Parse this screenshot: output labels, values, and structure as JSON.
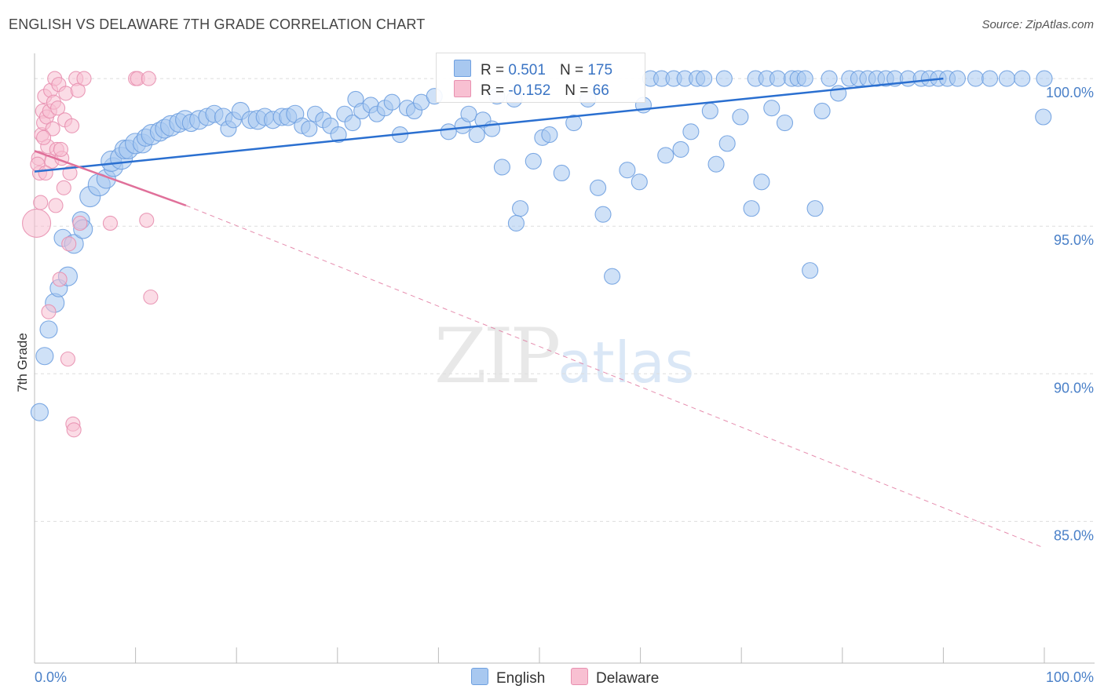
{
  "title": "ENGLISH VS DELAWARE 7TH GRADE CORRELATION CHART",
  "source": "Source: ZipAtlas.com",
  "watermark": {
    "zip": "ZIP",
    "atlas": "atlas"
  },
  "legend": {
    "rows": [
      {
        "series": "English",
        "r_label": "R =",
        "r_value": "0.501",
        "n_label": "N =",
        "n_value": "175",
        "color": "#a8c8f0",
        "border": "#6fa0e0"
      },
      {
        "series": "Delaware",
        "r_label": "R =",
        "r_value": "-0.152",
        "n_label": "N =",
        "n_value": "66",
        "color": "#f8c0d2",
        "border": "#e890b0"
      }
    ]
  },
  "bottom_legend": [
    {
      "label": "English",
      "color": "#a8c8f0",
      "border": "#6fa0e0"
    },
    {
      "label": "Delaware",
      "color": "#f8c0d2",
      "border": "#e890b0"
    }
  ],
  "chart_data": {
    "type": "scatter",
    "title": "ENGLISH VS DELAWARE 7TH GRADE CORRELATION CHART",
    "xlabel": "",
    "ylabel": "7th Grade",
    "xlim": [
      0,
      100
    ],
    "ylim": [
      80.2,
      100.8
    ],
    "x_tick_labels": [
      "0.0%",
      "100.0%"
    ],
    "y_ticks": [
      {
        "value": 100,
        "label": "100.0%"
      },
      {
        "value": 95,
        "label": "95.0%"
      },
      {
        "value": 90,
        "label": "90.0%"
      },
      {
        "value": 85,
        "label": "85.0%"
      }
    ],
    "grid": true,
    "series": [
      {
        "name": "English",
        "color": "#a8c8f0",
        "stroke": "#6fa0e0",
        "line_color": "#2a6fd0",
        "trend": {
          "x0": 0,
          "y0": 96.85,
          "x1": 90,
          "y1": 100.0
        },
        "points": [
          [
            0.5,
            88.7,
            1.1
          ],
          [
            1.0,
            90.6,
            1.1
          ],
          [
            1.4,
            91.5,
            1.1
          ],
          [
            2.0,
            92.4,
            1.2
          ],
          [
            2.4,
            92.9,
            1.1
          ],
          [
            3.3,
            93.3,
            1.2
          ],
          [
            2.8,
            94.6,
            1.1
          ],
          [
            3.9,
            94.4,
            1.2
          ],
          [
            4.6,
            95.2,
            1.1
          ],
          [
            4.8,
            94.9,
            1.2
          ],
          [
            5.5,
            96.0,
            1.3
          ],
          [
            6.4,
            96.4,
            1.4
          ],
          [
            7.1,
            96.6,
            1.2
          ],
          [
            7.8,
            97.0,
            1.2
          ],
          [
            7.6,
            97.2,
            1.3
          ],
          [
            8.6,
            97.3,
            1.4
          ],
          [
            8.9,
            97.6,
            1.2
          ],
          [
            9.3,
            97.6,
            1.2
          ],
          [
            10.0,
            97.8,
            1.3
          ],
          [
            10.7,
            97.8,
            1.2
          ],
          [
            11.0,
            98.0,
            1.1
          ],
          [
            11.6,
            98.1,
            1.3
          ],
          [
            12.4,
            98.2,
            1.2
          ],
          [
            12.9,
            98.3,
            1.2
          ],
          [
            13.5,
            98.4,
            1.3
          ],
          [
            14.3,
            98.5,
            1.2
          ],
          [
            14.9,
            98.6,
            1.2
          ],
          [
            15.5,
            98.5,
            1.1
          ],
          [
            16.3,
            98.6,
            1.2
          ],
          [
            17.1,
            98.7,
            1.1
          ],
          [
            17.8,
            98.8,
            1.1
          ],
          [
            18.7,
            98.7,
            1.1
          ],
          [
            19.2,
            98.3,
            1.0
          ],
          [
            19.7,
            98.6,
            1.0
          ],
          [
            20.4,
            98.9,
            1.1
          ],
          [
            21.4,
            98.6,
            1.1
          ],
          [
            22.1,
            98.6,
            1.2
          ],
          [
            22.8,
            98.7,
            1.1
          ],
          [
            23.6,
            98.6,
            1.1
          ],
          [
            24.5,
            98.7,
            1.1
          ],
          [
            25.1,
            98.7,
            1.1
          ],
          [
            25.8,
            98.8,
            1.1
          ],
          [
            26.5,
            98.4,
            1.0
          ],
          [
            27.2,
            98.3,
            1.0
          ],
          [
            27.8,
            98.8,
            1.0
          ],
          [
            28.6,
            98.6,
            1.0
          ],
          [
            29.3,
            98.4,
            1.0
          ],
          [
            30.1,
            98.1,
            1.0
          ],
          [
            30.7,
            98.8,
            1.0
          ],
          [
            31.5,
            98.5,
            1.0
          ],
          [
            31.8,
            99.3,
            1.0
          ],
          [
            32.4,
            98.9,
            1.0
          ],
          [
            33.3,
            99.1,
            1.0
          ],
          [
            33.9,
            98.8,
            1.0
          ],
          [
            34.7,
            99.0,
            1.0
          ],
          [
            35.4,
            99.2,
            1.0
          ],
          [
            36.2,
            98.1,
            1.0
          ],
          [
            36.9,
            99.0,
            1.0
          ],
          [
            37.6,
            98.9,
            1.0
          ],
          [
            38.3,
            99.2,
            1.0
          ],
          [
            39.6,
            99.4,
            1.0
          ],
          [
            41.0,
            98.2,
            1.0
          ],
          [
            42.4,
            98.4,
            1.0
          ],
          [
            43.0,
            98.8,
            1.0
          ],
          [
            43.8,
            98.1,
            1.0
          ],
          [
            44.4,
            98.6,
            1.0
          ],
          [
            45.3,
            98.3,
            1.0
          ],
          [
            45.8,
            99.4,
            1.0
          ],
          [
            46.3,
            97.0,
            1.0
          ],
          [
            47.5,
            99.3,
            1.0
          ],
          [
            48.1,
            95.6,
            1.0
          ],
          [
            47.7,
            95.1,
            1.0
          ],
          [
            49.4,
            97.2,
            1.0
          ],
          [
            50.3,
            98.0,
            1.0
          ],
          [
            51.0,
            98.1,
            1.0
          ],
          [
            52.2,
            96.8,
            1.0
          ],
          [
            53.4,
            98.5,
            1.0
          ],
          [
            54.8,
            99.3,
            1.0
          ],
          [
            55.8,
            96.3,
            1.0
          ],
          [
            56.3,
            95.4,
            1.0
          ],
          [
            57.2,
            93.3,
            1.0
          ],
          [
            58.7,
            96.9,
            1.0
          ],
          [
            59.9,
            96.5,
            1.0
          ],
          [
            60.3,
            99.1,
            1.0
          ],
          [
            61.0,
            100.0,
            1.0
          ],
          [
            62.1,
            100.0,
            1.0
          ],
          [
            62.5,
            97.4,
            1.0
          ],
          [
            63.3,
            100.0,
            1.0
          ],
          [
            64.0,
            97.6,
            1.0
          ],
          [
            64.4,
            100.0,
            1.0
          ],
          [
            65.0,
            98.2,
            1.0
          ],
          [
            65.6,
            100.0,
            1.0
          ],
          [
            66.3,
            100.0,
            1.0
          ],
          [
            66.9,
            98.9,
            1.0
          ],
          [
            67.5,
            97.1,
            1.0
          ],
          [
            68.3,
            100.0,
            1.0
          ],
          [
            68.6,
            97.8,
            1.0
          ],
          [
            69.9,
            98.7,
            1.0
          ],
          [
            71.0,
            95.6,
            1.0
          ],
          [
            71.4,
            100.0,
            1.0
          ],
          [
            72.0,
            96.5,
            1.0
          ],
          [
            72.5,
            100.0,
            1.0
          ],
          [
            73.0,
            99.0,
            1.0
          ],
          [
            73.6,
            100.0,
            1.0
          ],
          [
            74.3,
            98.5,
            1.0
          ],
          [
            75.0,
            100.0,
            1.0
          ],
          [
            75.6,
            100.0,
            1.0
          ],
          [
            76.3,
            100.0,
            1.0
          ],
          [
            76.8,
            93.5,
            1.0
          ],
          [
            77.3,
            95.6,
            1.0
          ],
          [
            78.0,
            98.9,
            1.0
          ],
          [
            78.7,
            100.0,
            1.0
          ],
          [
            79.6,
            99.5,
            1.0
          ],
          [
            80.7,
            100.0,
            1.0
          ],
          [
            81.6,
            100.0,
            1.0
          ],
          [
            82.5,
            100.0,
            1.0
          ],
          [
            83.4,
            100.0,
            1.0
          ],
          [
            84.3,
            100.0,
            1.0
          ],
          [
            85.2,
            100.0,
            1.0
          ],
          [
            86.5,
            100.0,
            1.0
          ],
          [
            87.8,
            100.0,
            1.0
          ],
          [
            88.6,
            100.0,
            1.0
          ],
          [
            89.5,
            100.0,
            1.0
          ],
          [
            90.4,
            100.0,
            1.0
          ],
          [
            91.4,
            100.0,
            1.0
          ],
          [
            93.2,
            100.0,
            1.0
          ],
          [
            94.6,
            100.0,
            1.0
          ],
          [
            96.3,
            100.0,
            1.0
          ],
          [
            97.8,
            100.0,
            1.0
          ],
          [
            100.0,
            100.0,
            1.0
          ],
          [
            99.9,
            98.7,
            1.0
          ]
        ]
      },
      {
        "name": "Delaware",
        "color": "#f8c0d2",
        "stroke": "#e890b0",
        "line_color": "#e0709a",
        "trend": {
          "x0": 0,
          "y0": 97.55,
          "x1": 15,
          "y1": 95.7
        },
        "trend_dashed": {
          "x0": 15,
          "y0": 95.7,
          "x1": 100,
          "y1": 84.1
        },
        "points": [
          [
            0.2,
            95.1,
            2.0
          ],
          [
            0.4,
            97.3,
            1.0
          ],
          [
            0.5,
            96.8,
            1.0
          ],
          [
            0.7,
            98.1,
            1.0
          ],
          [
            0.8,
            98.9,
            1.0
          ],
          [
            0.9,
            98.5,
            1.0
          ],
          [
            1.0,
            99.4,
            1.0
          ],
          [
            1.2,
            98.7,
            1.0
          ],
          [
            1.3,
            97.7,
            1.0
          ],
          [
            1.5,
            98.9,
            1.0
          ],
          [
            1.6,
            99.6,
            1.0
          ],
          [
            1.7,
            97.2,
            1.0
          ],
          [
            1.8,
            98.3,
            1.0
          ],
          [
            1.9,
            99.2,
            1.0
          ],
          [
            2.0,
            100.0,
            1.0
          ],
          [
            2.1,
            95.7,
            1.0
          ],
          [
            2.2,
            97.6,
            1.0
          ],
          [
            2.3,
            99.0,
            1.0
          ],
          [
            2.4,
            99.8,
            1.0
          ],
          [
            2.5,
            93.2,
            1.0
          ],
          [
            2.7,
            97.3,
            1.0
          ],
          [
            2.9,
            96.3,
            1.0
          ],
          [
            3.0,
            98.6,
            1.0
          ],
          [
            3.1,
            99.5,
            1.0
          ],
          [
            3.3,
            90.5,
            1.0
          ],
          [
            3.4,
            94.4,
            1.0
          ],
          [
            3.5,
            96.8,
            1.0
          ],
          [
            3.7,
            98.4,
            1.0
          ],
          [
            3.8,
            88.3,
            1.0
          ],
          [
            3.9,
            88.1,
            1.0
          ],
          [
            4.1,
            100.0,
            1.0
          ],
          [
            4.3,
            99.6,
            1.0
          ],
          [
            4.5,
            95.1,
            1.0
          ],
          [
            4.9,
            100.0,
            1.0
          ],
          [
            7.5,
            95.1,
            1.0
          ],
          [
            10.0,
            100.0,
            1.0
          ],
          [
            10.2,
            100.0,
            1.0
          ],
          [
            11.1,
            95.2,
            1.0
          ],
          [
            11.3,
            100.0,
            1.0
          ],
          [
            11.5,
            92.6,
            1.0
          ],
          [
            1.4,
            92.1,
            1.0
          ],
          [
            0.3,
            97.1,
            1.0
          ],
          [
            0.6,
            95.8,
            1.0
          ],
          [
            1.1,
            96.8,
            1.0
          ],
          [
            0.9,
            98.0,
            1.0
          ],
          [
            2.6,
            97.6,
            1.0
          ]
        ]
      }
    ]
  }
}
